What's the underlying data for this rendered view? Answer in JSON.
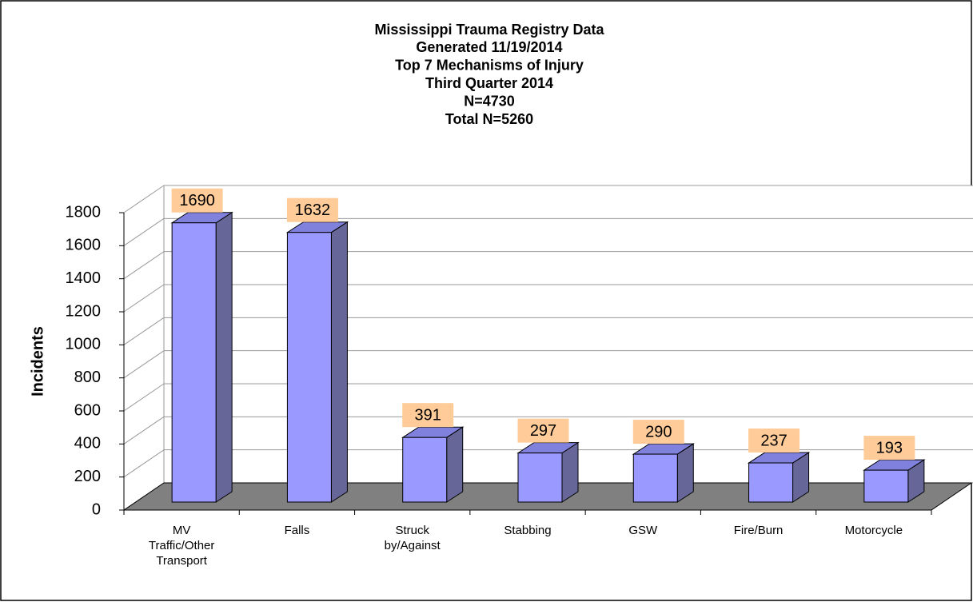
{
  "chart_data": {
    "type": "bar3d",
    "title": [
      "Mississippi Trauma Registry Data",
      "Generated 11/19/2014",
      "Top 7 Mechanisms of Injury",
      "Third Quarter 2014",
      "N=4730",
      "Total N=5260"
    ],
    "y_label": "Incidents",
    "categories": [
      "MV Traffic/Other Transport",
      "Falls",
      "Struck by/Against",
      "Stabbing",
      "GSW",
      "Fire/Burn",
      "Motorcycle"
    ],
    "values": [
      1690,
      1632,
      391,
      297,
      290,
      237,
      193
    ],
    "color": "#9999ff",
    "ylim": [
      0,
      1800
    ],
    "yticks": [
      0,
      200,
      400,
      600,
      800,
      1000,
      1200,
      1400,
      1600,
      1800
    ],
    "grid": true
  }
}
